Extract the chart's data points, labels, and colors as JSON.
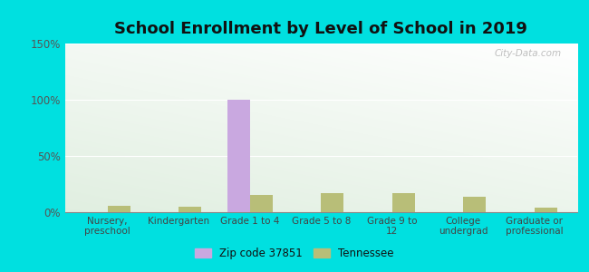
{
  "title": "School Enrollment by Level of School in 2019",
  "categories": [
    "Nursery,\npreschool",
    "Kindergarten",
    "Grade 1 to 4",
    "Grade 5 to 8",
    "Grade 9 to\n12",
    "College\nundergrad",
    "Graduate or\nprofessional"
  ],
  "zip_values": [
    0,
    0,
    100,
    0,
    0,
    0,
    0
  ],
  "tn_values": [
    6,
    5,
    15,
    17,
    17,
    14,
    4
  ],
  "zip_color": "#c9a8e0",
  "tn_color": "#b8be78",
  "bg_outer": "#00e0e0",
  "ylim": [
    0,
    150
  ],
  "yticks": [
    0,
    50,
    100,
    150
  ],
  "ytick_labels": [
    "0%",
    "50%",
    "100%",
    "150%"
  ],
  "title_fontsize": 13,
  "legend_labels": [
    "Zip code 37851",
    "Tennessee"
  ],
  "watermark": "City-Data.com",
  "grad_left": "#b0ddb0",
  "grad_right": "#f5fff5",
  "grad_top": "#f5fff8",
  "grad_bottom": "#c8e8c8"
}
